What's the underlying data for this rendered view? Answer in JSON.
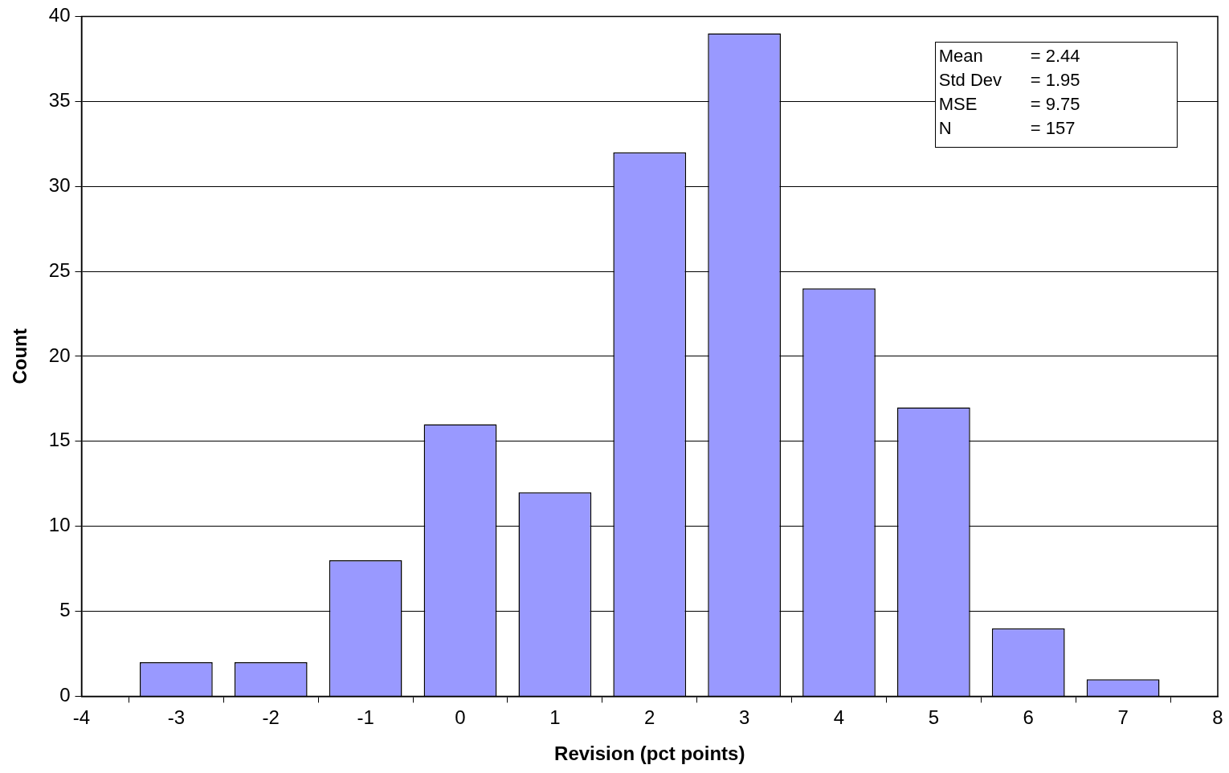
{
  "chart_data": {
    "type": "bar",
    "xlabel": "Revision (pct points)",
    "ylabel": "Count",
    "x": [
      -3,
      -2,
      -1,
      0,
      1,
      2,
      3,
      4,
      5,
      6,
      7
    ],
    "values": [
      2,
      2,
      8,
      16,
      12,
      32,
      39,
      24,
      17,
      4,
      1
    ],
    "color": "#9999ff",
    "xlim": [
      -4,
      8
    ],
    "xticks": [
      -4,
      -3,
      -2,
      -1,
      0,
      1,
      2,
      3,
      4,
      5,
      6,
      7,
      8
    ],
    "ylim": [
      0,
      40
    ],
    "yticks": [
      0,
      5,
      10,
      15,
      20,
      25,
      30,
      35,
      40
    ],
    "grid": "y",
    "legend": false,
    "annotations": [
      "Mean = 2.44",
      "Std Dev = 1.95",
      "MSE = 9.75",
      "N = 157"
    ]
  }
}
